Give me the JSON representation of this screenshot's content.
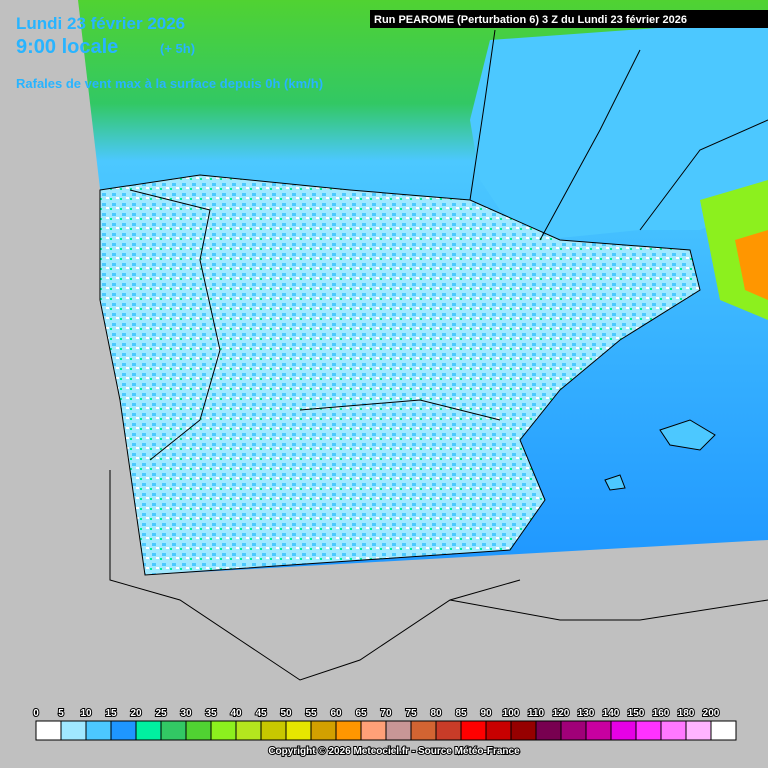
{
  "header": {
    "date": "Lundi 23 février 2026",
    "time": "9:00 locale",
    "offset": "(+ 5h)",
    "parameter": "Rafales de vent max à la surface depuis 0h (km/h)",
    "run": "Run PEAROME (Perturbation 6) 3 Z du Lundi 23 février 2026"
  },
  "legend": {
    "labels": [
      0,
      5,
      10,
      15,
      20,
      25,
      30,
      35,
      40,
      45,
      50,
      55,
      60,
      65,
      70,
      75,
      80,
      85,
      90,
      100,
      110,
      120,
      130,
      140,
      150,
      160,
      180,
      200
    ],
    "colors": [
      "#ffffff",
      "#a0e8ff",
      "#4cc8ff",
      "#1e96ff",
      "#00f0a0",
      "#32c864",
      "#50d232",
      "#8cf01e",
      "#b4e61e",
      "#c8c800",
      "#e6e600",
      "#d2a000",
      "#ff9600",
      "#ffa078",
      "#c89696",
      "#d26432",
      "#c83c28",
      "#ff0000",
      "#c80000",
      "#960000",
      "#780050",
      "#a00078",
      "#c800a0",
      "#e600e6",
      "#ff32ff",
      "#ff78ff",
      "#ffb4ff",
      "#ffffff"
    ]
  },
  "footer": "Copyright © 2026 Meteociel.fr - Source Météo-France"
}
